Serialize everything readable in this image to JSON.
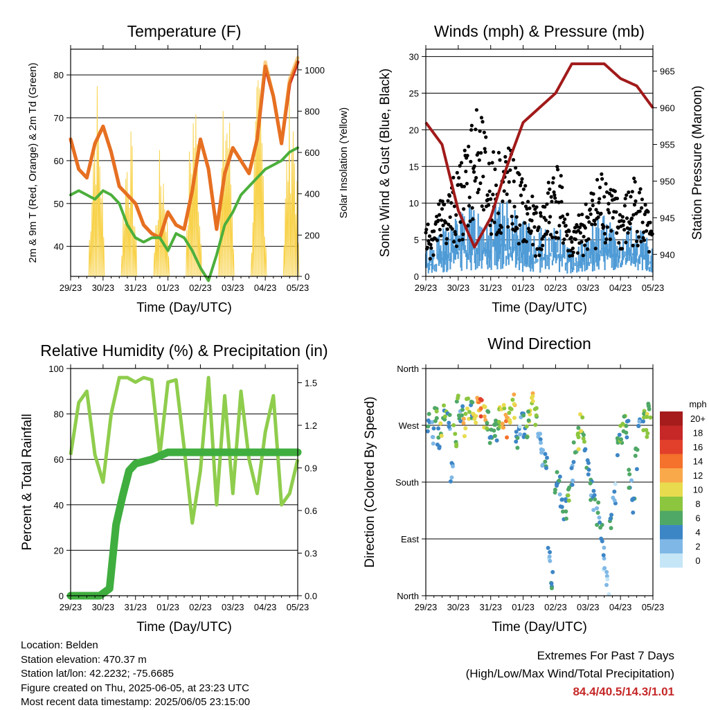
{
  "colors": {
    "temp_red": "#d32f1f",
    "temp_orange": "#f5a623",
    "dewpoint_green": "#4caf3c",
    "solar_yellow": "#f8d24a",
    "wind_blue": "#4f9bd6",
    "gust_black": "#000000",
    "pressure_maroon": "#a11a1a",
    "rh_lightgreen": "#8fcd4d",
    "precip_green": "#3fae3f",
    "extremes_red": "#c62828"
  },
  "time_ticks": [
    "29/23",
    "30/23",
    "31/23",
    "01/23",
    "02/23",
    "03/23",
    "04/23",
    "05/23"
  ],
  "info": {
    "location": "Location: Belden",
    "elevation": "Station elevation: 470.37 m",
    "latlon": "Station lat/lon: 42.2232; -75.6685",
    "created": "Figure created on Thu, 2025-06-05, at 23:23 UTC",
    "recent": "Most recent data timestamp: 2025/06/05 23:15:00"
  },
  "extremes": {
    "line1": "Extremes For Past 7 Days",
    "line2": "(High/Low/Max Wind/Total Precipitation)",
    "values": "84.4/40.5/14.3/1.01"
  },
  "chart_data": [
    {
      "type": "line",
      "title": "Temperature (F)",
      "xlabel": "Time (Day/UTC)",
      "ylabel": "2m & 9m T (Red, Orange) & 2m Td (Green)",
      "y2label": "Solar Insolation (Yellow)",
      "x": [
        0,
        0.25,
        0.5,
        0.75,
        1,
        1.25,
        1.5,
        1.75,
        2,
        2.25,
        2.5,
        2.75,
        3,
        3.25,
        3.5,
        3.75,
        4,
        4.25,
        4.5,
        4.75,
        5,
        5.25,
        5.5,
        5.75,
        6,
        6.25,
        6.5,
        6.75,
        7
      ],
      "series": [
        {
          "name": "2m T",
          "color": "#d32f1f",
          "values": [
            65,
            58,
            56,
            64,
            68,
            62,
            54,
            52,
            50,
            45,
            43,
            42,
            48,
            45,
            44,
            53,
            65,
            58,
            44,
            57,
            63,
            60,
            57,
            65,
            82,
            75,
            64,
            78,
            83
          ]
        },
        {
          "name": "9m T",
          "color": "#f5a623",
          "values": [
            65,
            58,
            56,
            64,
            68,
            62,
            54,
            52,
            50,
            45,
            43,
            42,
            48,
            45,
            44,
            53,
            65,
            58,
            44,
            57,
            63,
            60,
            57,
            65,
            83,
            75,
            64,
            79,
            84
          ]
        },
        {
          "name": "2m Td",
          "color": "#4caf3c",
          "values": [
            52,
            53,
            52,
            51,
            53,
            52,
            50,
            45,
            42,
            41,
            42,
            42,
            39,
            43,
            42,
            39,
            35,
            32,
            38,
            45,
            48,
            52,
            54,
            56,
            58,
            59,
            60,
            62,
            63
          ]
        }
      ],
      "series_secondary": [
        {
          "name": "Solar Insolation",
          "color": "#f8d24a",
          "peaks": [
            {
              "x": 0.8,
              "v": 1000
            },
            {
              "x": 1.8,
              "v": 780
            },
            {
              "x": 2.8,
              "v": 660
            },
            {
              "x": 3.8,
              "v": 980
            },
            {
              "x": 4.8,
              "v": 1000
            },
            {
              "x": 5.8,
              "v": 1000
            },
            {
              "x": 6.8,
              "v": 1000
            }
          ]
        }
      ],
      "ylim": [
        33,
        86
      ],
      "yticks": [
        40,
        50,
        60,
        70,
        80
      ],
      "y2lim": [
        0,
        1100
      ],
      "y2ticks": [
        0,
        200,
        400,
        600,
        800,
        1000
      ],
      "xlim": [
        0,
        7
      ],
      "grid": true
    },
    {
      "type": "scatter",
      "title": "Winds (mph) & Pressure (mb)",
      "xlabel": "Time (Day/UTC)",
      "ylabel": "Sonic Wind & Gust (Blue, Black)",
      "y2label": "Station Pressure (Maroon)",
      "x": [
        0,
        0.5,
        1,
        1.5,
        2,
        2.5,
        3,
        3.5,
        4,
        4.5,
        5,
        5.5,
        6,
        6.5,
        7
      ],
      "series": [
        {
          "name": "Sonic Wind",
          "color": "#4f9bd6",
          "values": [
            3,
            5,
            7,
            8,
            8,
            8,
            6,
            5,
            6,
            3,
            5,
            7,
            4,
            6,
            3
          ]
        },
        {
          "name": "Gust",
          "color": "#000000",
          "values": [
            6,
            9,
            12,
            20,
            14,
            15,
            11,
            7,
            14,
            5,
            9,
            13,
            8,
            12,
            5
          ]
        }
      ],
      "series_secondary": [
        {
          "name": "Station Pressure",
          "color": "#a11a1a",
          "values": [
            958,
            955,
            946,
            941,
            945,
            952,
            958,
            960,
            962,
            966,
            966,
            966,
            964,
            963,
            960
          ]
        }
      ],
      "ylim": [
        0,
        31
      ],
      "yticks": [
        0,
        5,
        10,
        15,
        20,
        25,
        30
      ],
      "y2lim": [
        937,
        968
      ],
      "y2ticks": [
        940,
        945,
        950,
        955,
        960,
        965
      ],
      "xlim": [
        0,
        7
      ],
      "grid": true
    },
    {
      "type": "line",
      "title": "Relative Humidity (%) & Precipitation (in)",
      "xlabel": "Time (Day/UTC)",
      "ylabel": "Percent & Total Rainfall",
      "x": [
        0,
        0.25,
        0.5,
        0.75,
        1,
        1.25,
        1.5,
        1.75,
        2,
        2.25,
        2.5,
        2.75,
        3,
        3.25,
        3.5,
        3.75,
        4,
        4.25,
        4.5,
        4.75,
        5,
        5.25,
        5.5,
        5.75,
        6,
        6.25,
        6.5,
        6.75,
        7
      ],
      "series": [
        {
          "name": "Relative Humidity",
          "color": "#8fcd4d",
          "values": [
            62,
            85,
            90,
            62,
            50,
            80,
            96,
            96,
            94,
            96,
            95,
            62,
            94,
            95,
            65,
            32,
            55,
            96,
            40,
            88,
            45,
            90,
            60,
            45,
            72,
            88,
            40,
            45,
            60
          ]
        }
      ],
      "series_secondary": [
        {
          "name": "Total Precipitation",
          "color": "#3fae3f",
          "x": [
            0,
            0.9,
            1.2,
            1.4,
            1.6,
            1.8,
            2,
            2.5,
            3,
            4,
            5,
            6,
            7
          ],
          "values": [
            0,
            0,
            0.05,
            0.5,
            0.7,
            0.88,
            0.93,
            0.96,
            1.01,
            1.01,
            1.01,
            1.01,
            1.01
          ]
        }
      ],
      "ylim": [
        0,
        100
      ],
      "yticks": [
        0,
        20,
        40,
        60,
        80,
        100
      ],
      "y2lim": [
        0,
        1.6
      ],
      "y2ticks": [
        "0.0",
        "0.3",
        "0.6",
        "0.9",
        "1.2",
        "1.5"
      ],
      "xlim": [
        0,
        7
      ],
      "grid": true
    },
    {
      "type": "scatter",
      "title": "Wind Direction",
      "xlabel": "Time (Day/UTC)",
      "ylabel": "Direction (Colored By Speed)",
      "ycategories": [
        "North",
        "East",
        "South",
        "West",
        "North"
      ],
      "ylim": [
        0,
        360
      ],
      "xlim": [
        0,
        7
      ],
      "legend": {
        "title": "mph",
        "labels": [
          "20+",
          "18",
          "16",
          "14",
          "12",
          "10",
          "8",
          "6",
          "4",
          "2",
          "0"
        ],
        "colors": [
          "#a61c1c",
          "#c62828",
          "#e2402b",
          "#f4722b",
          "#f9a84a",
          "#e8db4e",
          "#8cc63f",
          "#4fa866",
          "#3d86c6",
          "#7fb8e6",
          "#c5e6f7"
        ],
        "placement": "right"
      },
      "points": [
        {
          "x": 0.1,
          "dir": 270,
          "spd": 4
        },
        {
          "x": 0.2,
          "dir": 260,
          "spd": 2
        },
        {
          "x": 0.3,
          "dir": 280,
          "spd": 6
        },
        {
          "x": 0.4,
          "dir": 250,
          "spd": 4
        },
        {
          "x": 0.5,
          "dir": 265,
          "spd": 8
        },
        {
          "x": 0.6,
          "dir": 290,
          "spd": 6
        },
        {
          "x": 0.7,
          "dir": 275,
          "spd": 4
        },
        {
          "x": 0.8,
          "dir": 200,
          "spd": 2
        },
        {
          "x": 0.9,
          "dir": 255,
          "spd": 8
        },
        {
          "x": 1.0,
          "dir": 300,
          "spd": 6
        },
        {
          "x": 1.1,
          "dir": 285,
          "spd": 4
        },
        {
          "x": 1.2,
          "dir": 270,
          "spd": 10
        },
        {
          "x": 1.3,
          "dir": 295,
          "spd": 8
        },
        {
          "x": 1.4,
          "dir": 300,
          "spd": 6
        },
        {
          "x": 1.5,
          "dir": 290,
          "spd": 10
        },
        {
          "x": 1.6,
          "dir": 295,
          "spd": 12
        },
        {
          "x": 1.7,
          "dir": 300,
          "spd": 14
        },
        {
          "x": 1.8,
          "dir": 285,
          "spd": 10
        },
        {
          "x": 1.9,
          "dir": 275,
          "spd": 6
        },
        {
          "x": 2.0,
          "dir": 260,
          "spd": 4
        },
        {
          "x": 2.1,
          "dir": 270,
          "spd": 6
        },
        {
          "x": 2.2,
          "dir": 265,
          "spd": 4
        },
        {
          "x": 2.3,
          "dir": 280,
          "spd": 8
        },
        {
          "x": 2.4,
          "dir": 285,
          "spd": 10
        },
        {
          "x": 2.5,
          "dir": 270,
          "spd": 12
        },
        {
          "x": 2.6,
          "dir": 280,
          "spd": 8
        },
        {
          "x": 2.7,
          "dir": 300,
          "spd": 10
        },
        {
          "x": 2.8,
          "dir": 250,
          "spd": 4
        },
        {
          "x": 2.9,
          "dir": 265,
          "spd": 2
        },
        {
          "x": 3.0,
          "dir": 270,
          "spd": 4
        },
        {
          "x": 3.1,
          "dir": 260,
          "spd": 6
        },
        {
          "x": 3.2,
          "dir": 290,
          "spd": 8
        },
        {
          "x": 3.3,
          "dir": 305,
          "spd": 10
        },
        {
          "x": 3.4,
          "dir": 280,
          "spd": 6
        },
        {
          "x": 3.5,
          "dir": 240,
          "spd": 2
        },
        {
          "x": 3.6,
          "dir": 220,
          "spd": 2
        },
        {
          "x": 3.7,
          "dir": 210,
          "spd": 4
        },
        {
          "x": 3.8,
          "dir": 60,
          "spd": 2
        },
        {
          "x": 3.9,
          "dir": 20,
          "spd": 4
        },
        {
          "x": 4.0,
          "dir": 180,
          "spd": 4
        },
        {
          "x": 4.1,
          "dir": 170,
          "spd": 4
        },
        {
          "x": 4.2,
          "dir": 150,
          "spd": 4
        },
        {
          "x": 4.3,
          "dir": 140,
          "spd": 4
        },
        {
          "x": 4.4,
          "dir": 160,
          "spd": 6
        },
        {
          "x": 4.5,
          "dir": 190,
          "spd": 4
        },
        {
          "x": 4.6,
          "dir": 230,
          "spd": 4
        },
        {
          "x": 4.7,
          "dir": 250,
          "spd": 8
        },
        {
          "x": 4.8,
          "dir": 270,
          "spd": 8
        },
        {
          "x": 4.9,
          "dir": 240,
          "spd": 6
        },
        {
          "x": 5.0,
          "dir": 200,
          "spd": 4
        },
        {
          "x": 5.1,
          "dir": 170,
          "spd": 4
        },
        {
          "x": 5.2,
          "dir": 150,
          "spd": 4
        },
        {
          "x": 5.3,
          "dir": 130,
          "spd": 4
        },
        {
          "x": 5.4,
          "dir": 100,
          "spd": 4
        },
        {
          "x": 5.5,
          "dir": 60,
          "spd": 2
        },
        {
          "x": 5.6,
          "dir": 20,
          "spd": 2
        },
        {
          "x": 5.7,
          "dir": 120,
          "spd": 4
        },
        {
          "x": 5.8,
          "dir": 160,
          "spd": 2
        },
        {
          "x": 5.9,
          "dir": 230,
          "spd": 6
        },
        {
          "x": 6.0,
          "dir": 250,
          "spd": 6
        },
        {
          "x": 6.1,
          "dir": 270,
          "spd": 8
        },
        {
          "x": 6.2,
          "dir": 260,
          "spd": 4
        },
        {
          "x": 6.3,
          "dir": 180,
          "spd": 4
        },
        {
          "x": 6.4,
          "dir": 150,
          "spd": 4
        },
        {
          "x": 6.5,
          "dir": 220,
          "spd": 4
        },
        {
          "x": 6.6,
          "dir": 260,
          "spd": 2
        },
        {
          "x": 6.7,
          "dir": 280,
          "spd": 6
        },
        {
          "x": 6.8,
          "dir": 270,
          "spd": 8
        },
        {
          "x": 6.9,
          "dir": 285,
          "spd": 6
        }
      ]
    }
  ]
}
